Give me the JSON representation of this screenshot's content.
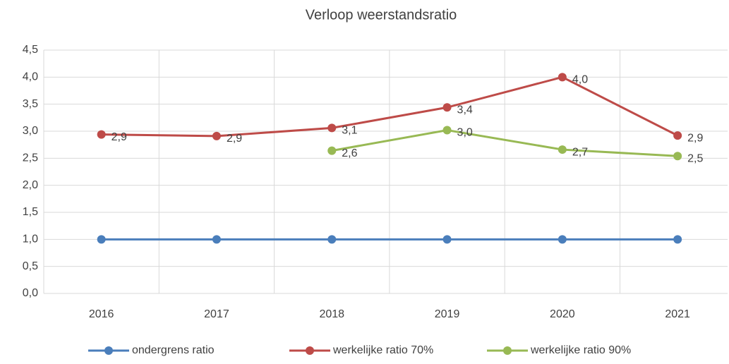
{
  "chart_data": {
    "type": "line",
    "title": "Verloop weerstandsratio",
    "categories": [
      "2016",
      "2017",
      "2018",
      "2019",
      "2020",
      "2021"
    ],
    "series": [
      {
        "name": "ondergrens ratio",
        "color": "#4a7ebb",
        "values": [
          1,
          1,
          1,
          1,
          1,
          1
        ]
      },
      {
        "name": "werkelijke ratio 70%",
        "color": "#be4b48",
        "values": [
          2.94,
          2.91,
          3.06,
          3.44,
          4.0,
          2.92
        ],
        "value_labels": [
          "2,9",
          "2,9",
          "3,1",
          "3,4",
          "4,0",
          "2,9"
        ]
      },
      {
        "name": "werkelijke ratio 90%",
        "color": "#98b954",
        "values": [
          null,
          null,
          2.64,
          3.02,
          2.66,
          2.54
        ],
        "value_labels": [
          null,
          null,
          "2,6",
          "3,0",
          "2,7",
          "2,5"
        ]
      }
    ],
    "ylim": [
      0,
      4.5
    ],
    "yticks": [
      {
        "value": 0,
        "label": "0,0"
      },
      {
        "value": 0.5,
        "label": "0,5"
      },
      {
        "value": 1,
        "label": "1,0"
      },
      {
        "value": 1.5,
        "label": "1,5"
      },
      {
        "value": 2,
        "label": "2,0"
      },
      {
        "value": 2.5,
        "label": "2,5"
      },
      {
        "value": 3,
        "label": "3,0"
      },
      {
        "value": 3.5,
        "label": "3,5"
      },
      {
        "value": 4,
        "label": "4,0"
      },
      {
        "value": 4.5,
        "label": "4,5"
      }
    ],
    "grid": true,
    "legend": "bottom"
  }
}
